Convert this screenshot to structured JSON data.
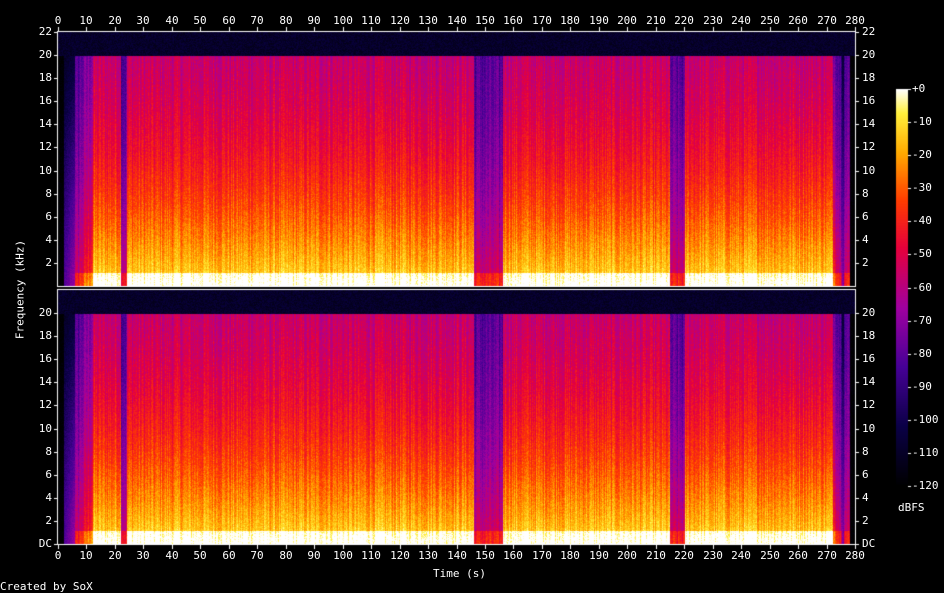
{
  "chart_data": {
    "type": "heatmap",
    "xlabel": "Time (s)",
    "ylabel": "Frequency (kHz)",
    "x_range": [
      0,
      280
    ],
    "x_ticks": [
      0,
      10,
      20,
      30,
      40,
      50,
      60,
      70,
      80,
      90,
      100,
      110,
      120,
      130,
      140,
      150,
      160,
      170,
      180,
      190,
      200,
      210,
      220,
      230,
      240,
      250,
      260,
      270,
      280
    ],
    "y_range_khz": [
      0,
      22
    ],
    "channels": [
      {
        "y_ticks": [
          "2",
          "4",
          "6",
          "8",
          "10",
          "12",
          "14",
          "16",
          "18",
          "20",
          "22"
        ]
      },
      {
        "y_ticks": [
          "DC",
          "2",
          "4",
          "6",
          "8",
          "10",
          "12",
          "14",
          "16",
          "18",
          "20"
        ]
      }
    ],
    "colorbar": {
      "title": "dBFS",
      "range": [
        -120,
        0
      ],
      "ticks": [
        "+0",
        "-10",
        "-20",
        "-30",
        "-40",
        "-50",
        "-60",
        "-70",
        "-80",
        "-90",
        "-100",
        "-110",
        "-120"
      ]
    },
    "bandwidth_limit_khz": 20,
    "quiet_gaps_s": [
      [
        0,
        12
      ],
      [
        22,
        24
      ],
      [
        146,
        156
      ],
      [
        215,
        220
      ],
      [
        276,
        280
      ]
    ],
    "colors": {
      "background": "#000000",
      "text": "#ffffff"
    }
  },
  "footer": {
    "credit": "Created by SoX"
  }
}
